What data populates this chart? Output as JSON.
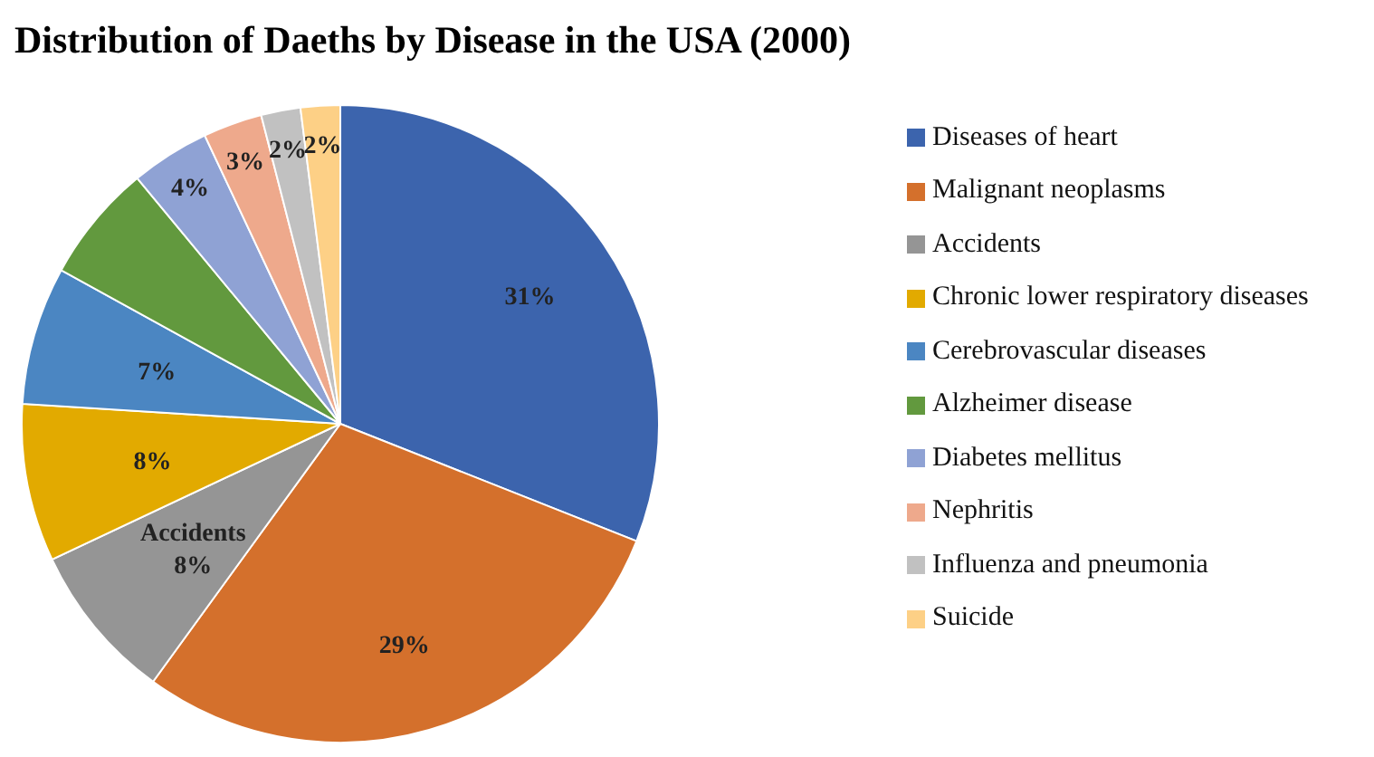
{
  "chart_data": {
    "type": "pie",
    "title": "Distribution of Daeths by Disease in the USA (2000)",
    "categories": [
      "Diseases of heart",
      "Malignant neoplasms",
      "Accidents",
      "Chronic lower respiratory diseases",
      "Cerebrovascular diseases",
      "Alzheimer disease",
      "Diabetes mellitus",
      "Nephritis",
      "Influenza and pneumonia",
      "Suicide"
    ],
    "values": [
      31,
      29,
      8,
      8,
      7,
      6,
      4,
      3,
      2,
      2
    ],
    "colors": [
      "#3c64ad",
      "#d4702c",
      "#959595",
      "#e2aa00",
      "#4b86c2",
      "#62993e",
      "#8fa2d4",
      "#eea98c",
      "#c1c1c1",
      "#fdd086"
    ],
    "value_labels": [
      "31%",
      "29%",
      "Accidents\n8%",
      "8%",
      "7%",
      null,
      "4%",
      "3%",
      "2%",
      "2%"
    ],
    "legend": "right"
  }
}
